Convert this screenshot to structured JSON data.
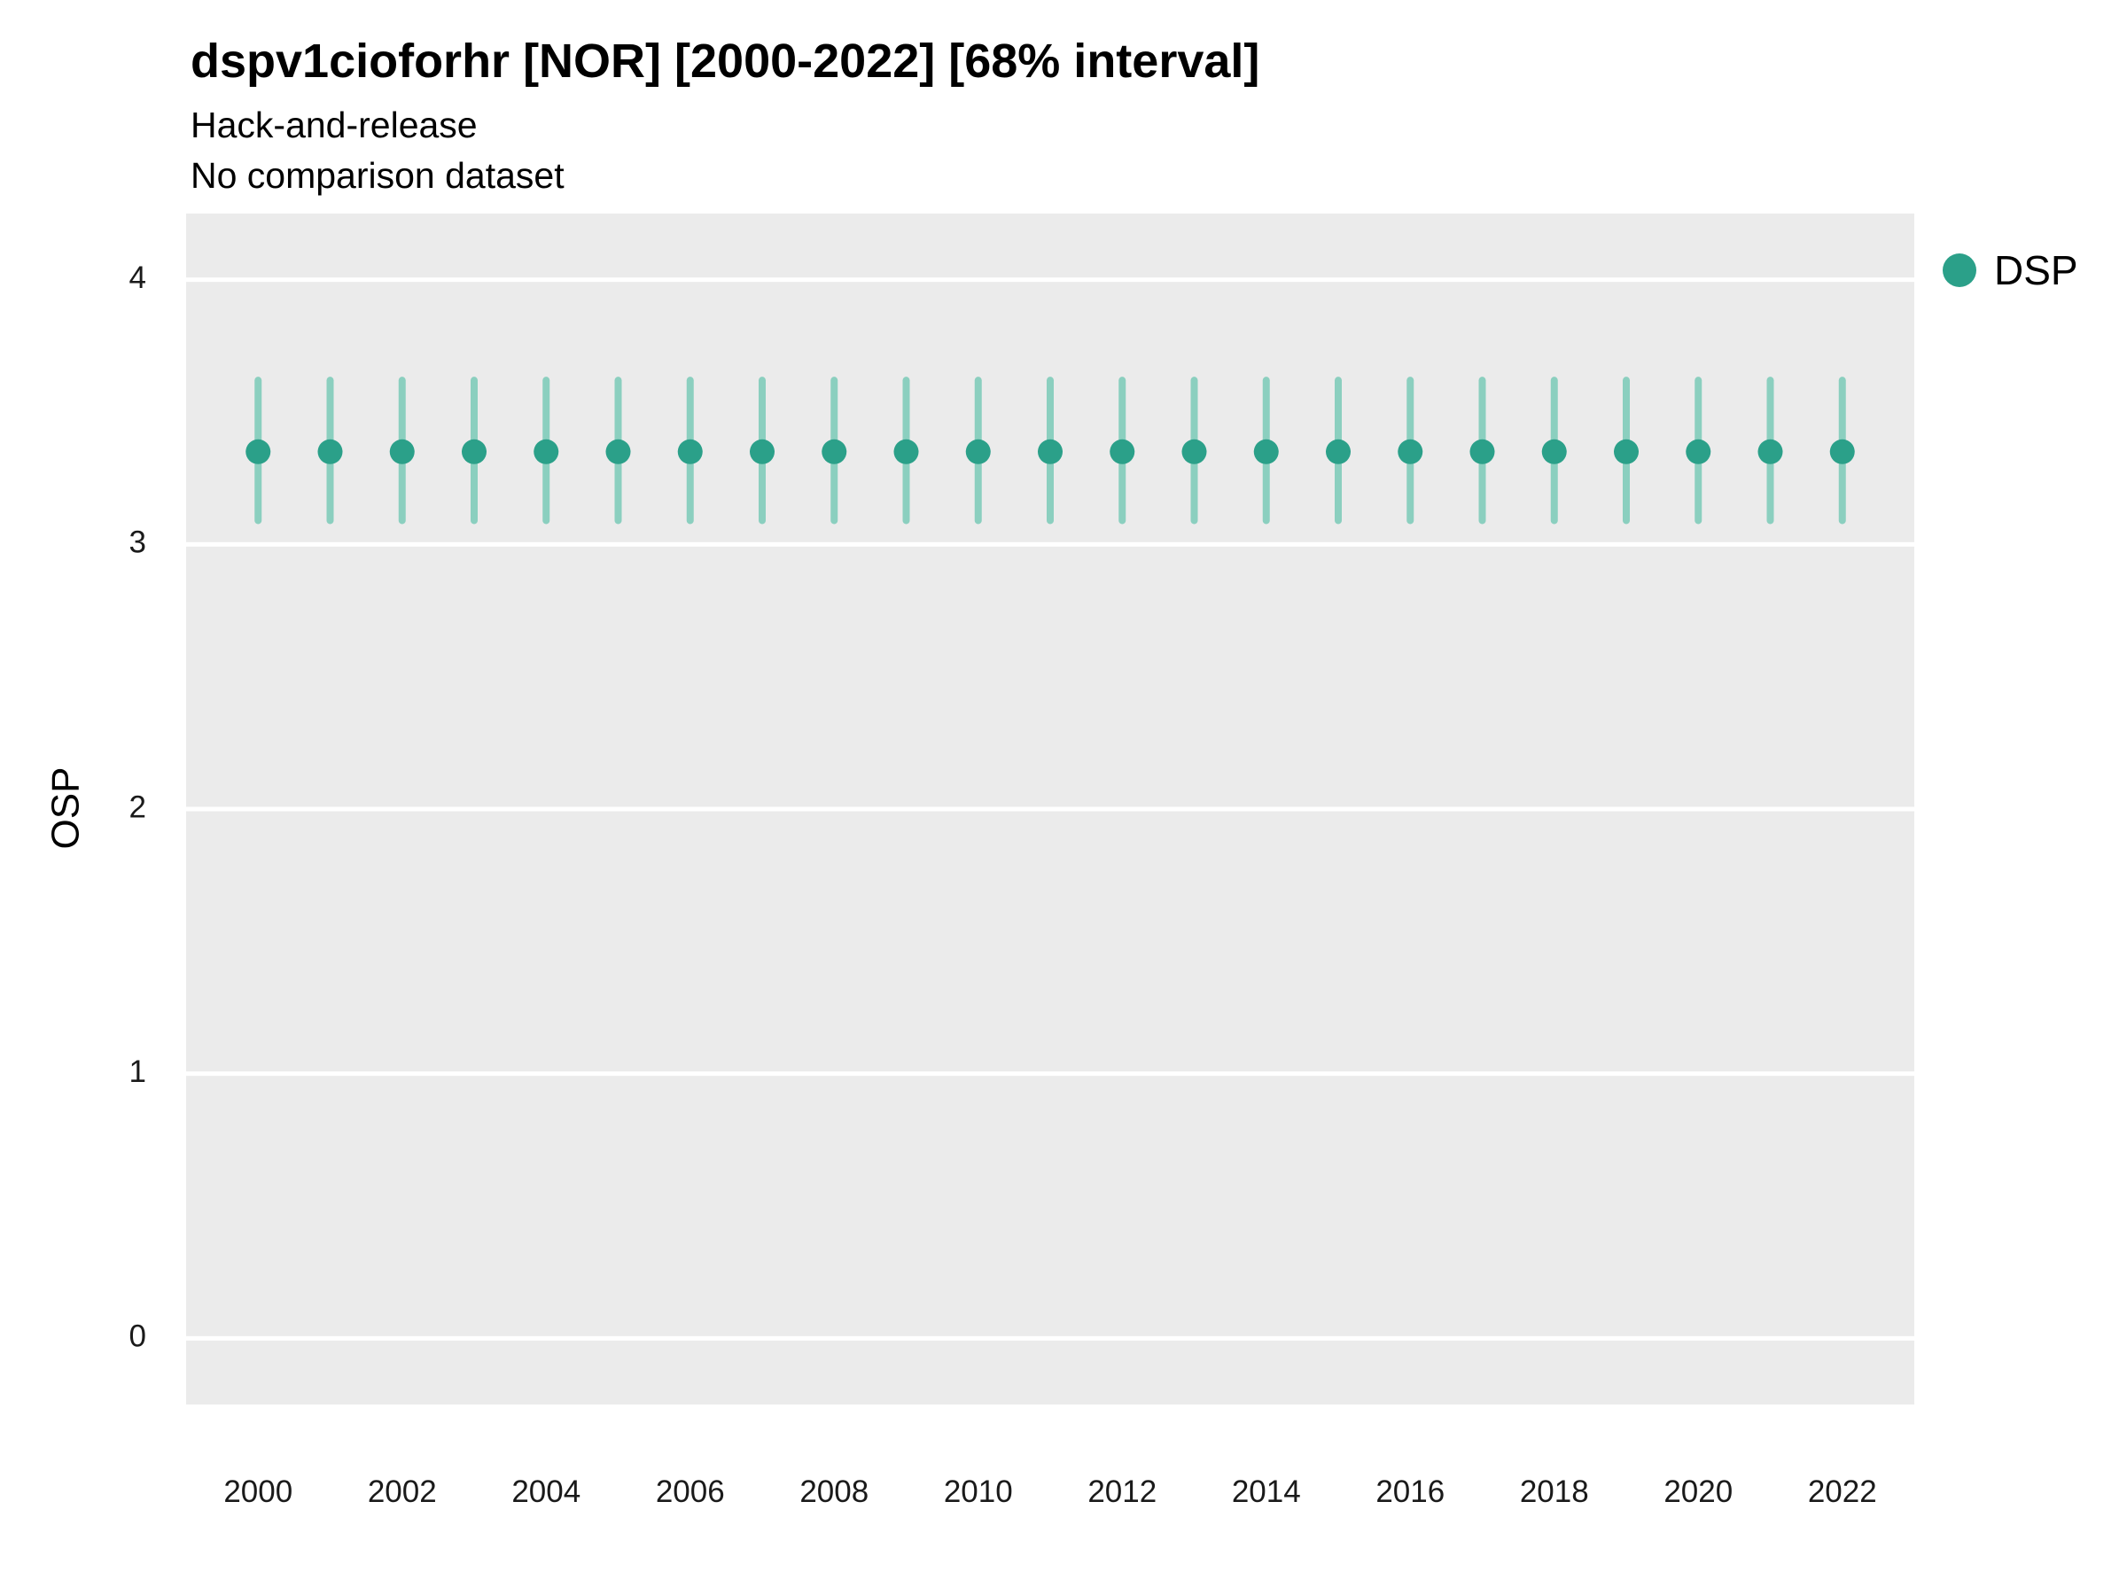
{
  "chart_data": {
    "type": "scatter",
    "title": "dspv1cioforhr [NOR] [2000-2022] [68% interval]",
    "subtitle": "Hack-and-release",
    "note": "No comparison dataset",
    "xlabel": "",
    "ylabel": "OSP",
    "x": [
      2000,
      2001,
      2002,
      2003,
      2004,
      2005,
      2006,
      2007,
      2008,
      2009,
      2010,
      2011,
      2012,
      2013,
      2014,
      2015,
      2016,
      2017,
      2018,
      2019,
      2020,
      2021,
      2022
    ],
    "series": [
      {
        "name": "DSP",
        "center": [
          3.35,
          3.35,
          3.35,
          3.35,
          3.35,
          3.35,
          3.35,
          3.35,
          3.35,
          3.35,
          3.35,
          3.35,
          3.35,
          3.35,
          3.35,
          3.35,
          3.35,
          3.35,
          3.35,
          3.35,
          3.35,
          3.35,
          3.35
        ],
        "lower": [
          3.09,
          3.09,
          3.09,
          3.09,
          3.09,
          3.09,
          3.09,
          3.09,
          3.09,
          3.09,
          3.09,
          3.09,
          3.09,
          3.09,
          3.09,
          3.09,
          3.09,
          3.09,
          3.09,
          3.09,
          3.09,
          3.09,
          3.09
        ],
        "upper": [
          3.62,
          3.62,
          3.62,
          3.62,
          3.62,
          3.62,
          3.62,
          3.62,
          3.62,
          3.62,
          3.62,
          3.62,
          3.62,
          3.62,
          3.62,
          3.62,
          3.62,
          3.62,
          3.62,
          3.62,
          3.62,
          3.62,
          3.62
        ]
      }
    ],
    "interval_label": "68% interval",
    "ylim": [
      -0.25,
      4.25
    ],
    "xlim": [
      1999,
      2023
    ],
    "yticks": [
      0,
      1,
      2,
      3,
      4
    ],
    "xticks": [
      2000,
      2002,
      2004,
      2006,
      2008,
      2010,
      2012,
      2014,
      2016,
      2018,
      2020,
      2022
    ],
    "grid": true,
    "legend": {
      "position": "right",
      "entries": [
        {
          "label": "DSP",
          "color": "#2BA089"
        }
      ]
    },
    "colors": {
      "point": "#2BA089",
      "interval": "#8BCFBF",
      "panel_bg": "#EBEBEB",
      "grid": "#FFFFFF",
      "tick_label": "#1a1a1a"
    }
  }
}
